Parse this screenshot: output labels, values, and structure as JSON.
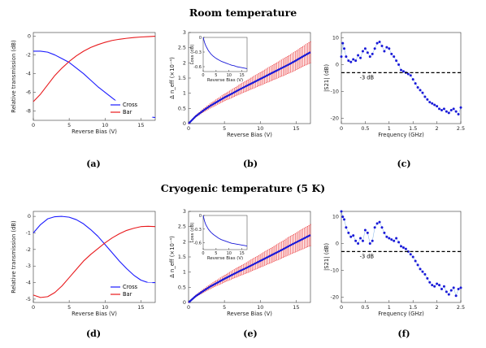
{
  "sections": [
    {
      "title": "Room temperature"
    },
    {
      "title": "Cryogenic temperature (5 K)"
    }
  ],
  "colors": {
    "cross": "#1a1aff",
    "bar": "#e8191c",
    "error": "#e8191c",
    "mean": "#1a1ad8",
    "s21": "#1a1ad8",
    "threshold": "#000000"
  },
  "chart_data": [
    {
      "id": "a",
      "panel_label": "(a)",
      "type": "line",
      "xlabel": "Reverse Bias (V)",
      "ylabel": "Relative transmission (dB)",
      "xlim": [
        0,
        17
      ],
      "ylim": [
        -9,
        0.4
      ],
      "xticks": [
        0,
        5,
        10,
        15
      ],
      "yticks": [
        -8,
        -6,
        -4,
        -2,
        0
      ],
      "ytick_labels": [
        "-8",
        "-6",
        "-4",
        "-2",
        "0"
      ],
      "legend": {
        "position": "bottom-right"
      },
      "series": [
        {
          "name": "Cross",
          "color": "#1a1aff",
          "x": [
            0,
            1,
            2,
            3,
            4,
            5,
            6,
            7,
            8,
            9,
            10,
            11,
            12,
            13,
            14,
            15,
            16,
            17
          ],
          "y": [
            -1.6,
            -1.6,
            -1.7,
            -2.0,
            -2.4,
            -2.8,
            -3.4,
            -4.0,
            -4.7,
            -5.4,
            -6.0,
            -6.6,
            -7.2,
            -7.7,
            -8.1,
            -8.4,
            -8.6,
            -8.7
          ]
        },
        {
          "name": "Bar",
          "color": "#e8191c",
          "x": [
            0,
            1,
            2,
            3,
            4,
            5,
            6,
            7,
            8,
            9,
            10,
            11,
            12,
            13,
            14,
            15,
            16,
            17
          ],
          "y": [
            -7.0,
            -6.2,
            -5.2,
            -4.2,
            -3.4,
            -2.7,
            -2.1,
            -1.6,
            -1.2,
            -0.9,
            -0.65,
            -0.45,
            -0.32,
            -0.22,
            -0.14,
            -0.08,
            -0.04,
            0.0
          ]
        }
      ]
    },
    {
      "id": "b",
      "panel_label": "(b)",
      "type": "line",
      "xlabel": "Reverse Bias (V)",
      "ylabel": "Δ n_eff (×10⁻⁴)",
      "xlim": [
        0,
        17
      ],
      "ylim": [
        0,
        3
      ],
      "xticks": [
        0,
        5,
        10,
        15
      ],
      "yticks": [
        0,
        0.5,
        1,
        1.5,
        2,
        2.5,
        3
      ],
      "ytick_labels": [
        "0",
        "0.5",
        "1",
        "1.5",
        "2",
        "2.5",
        "3"
      ],
      "mean_color": "#1a1ad8",
      "error_color": "#e8191c",
      "x": [
        0,
        1,
        2,
        3,
        4,
        5,
        6,
        7,
        8,
        9,
        10,
        11,
        12,
        13,
        14,
        15,
        16,
        17
      ],
      "y": [
        0.0,
        0.24,
        0.42,
        0.58,
        0.72,
        0.86,
        0.98,
        1.11,
        1.23,
        1.35,
        1.47,
        1.59,
        1.71,
        1.83,
        1.95,
        2.08,
        2.22,
        2.35
      ],
      "err": [
        0.0,
        0.03,
        0.05,
        0.07,
        0.09,
        0.11,
        0.13,
        0.15,
        0.17,
        0.19,
        0.21,
        0.23,
        0.25,
        0.27,
        0.29,
        0.31,
        0.33,
        0.35
      ],
      "inset": {
        "xlabel": "Reverse Bias (V)",
        "ylabel": "Loss (dB)",
        "xlim": [
          0,
          17
        ],
        "ylim": [
          -0.7,
          0.0
        ],
        "xticks": [
          0,
          5,
          10,
          15
        ],
        "yticks": [
          -0.6,
          -0.3,
          0
        ],
        "ytick_labels": [
          "-0.6",
          "-0.3",
          "0"
        ],
        "x": [
          0,
          0.5,
          1,
          2,
          3,
          4,
          5,
          6,
          7,
          8,
          9,
          10,
          11,
          12,
          13,
          14,
          15,
          16,
          17
        ],
        "y": [
          0.0,
          -0.1,
          -0.17,
          -0.27,
          -0.34,
          -0.39,
          -0.43,
          -0.46,
          -0.49,
          -0.51,
          -0.53,
          -0.55,
          -0.57,
          -0.58,
          -0.6,
          -0.61,
          -0.62,
          -0.63,
          -0.64
        ]
      }
    },
    {
      "id": "c",
      "panel_label": "(c)",
      "type": "scatter",
      "xlabel": "Frequency (GHz)",
      "ylabel": "|S21| (dB)",
      "xlim": [
        0,
        2.5
      ],
      "ylim": [
        -22,
        12
      ],
      "xticks": [
        0,
        0.5,
        1,
        1.5,
        2,
        2.5
      ],
      "yticks": [
        -20,
        -10,
        0,
        10
      ],
      "ytick_labels": [
        "-20",
        "-10",
        "0",
        "10"
      ],
      "threshold": {
        "value": -3,
        "label": "-3 dB"
      },
      "x": [
        0.0,
        0.03,
        0.06,
        0.1,
        0.15,
        0.2,
        0.25,
        0.3,
        0.35,
        0.4,
        0.45,
        0.5,
        0.55,
        0.6,
        0.65,
        0.7,
        0.75,
        0.8,
        0.85,
        0.9,
        0.95,
        1.0,
        1.05,
        1.1,
        1.15,
        1.2,
        1.25,
        1.3,
        1.35,
        1.4,
        1.45,
        1.5,
        1.55,
        1.6,
        1.65,
        1.7,
        1.75,
        1.8,
        1.85,
        1.9,
        1.95,
        2.0,
        2.05,
        2.1,
        2.15,
        2.2,
        2.25,
        2.3,
        2.35,
        2.4,
        2.45,
        2.5
      ],
      "y": [
        3.0,
        8.0,
        6.0,
        3.0,
        1.5,
        1.0,
        2.0,
        1.5,
        3.5,
        2.5,
        5.0,
        6.0,
        4.5,
        3.0,
        4.0,
        6.0,
        8.0,
        8.5,
        7.0,
        5.0,
        6.5,
        6.0,
        4.0,
        3.0,
        1.5,
        0.0,
        -2.0,
        -2.5,
        -3.0,
        -3.5,
        -4.0,
        -5.5,
        -7.0,
        -8.5,
        -9.5,
        -10.5,
        -12.0,
        -13.0,
        -14.0,
        -14.5,
        -15.0,
        -15.5,
        -16.5,
        -17.0,
        -16.5,
        -17.5,
        -18.0,
        -17.0,
        -16.5,
        -17.5,
        -18.5,
        -16.0
      ]
    },
    {
      "id": "d",
      "panel_label": "(d)",
      "type": "line",
      "xlabel": "Reverse Bias (V)",
      "ylabel": "Relative transmission (dB)",
      "xlim": [
        0,
        17
      ],
      "ylim": [
        -5.2,
        0.3
      ],
      "xticks": [
        0,
        5,
        10,
        15
      ],
      "yticks": [
        -5,
        -4,
        -3,
        -2,
        -1,
        0
      ],
      "ytick_labels": [
        "-5",
        "-4",
        "-3",
        "-2",
        "-1",
        "0"
      ],
      "legend": {
        "position": "bottom-right"
      },
      "series": [
        {
          "name": "Cross",
          "color": "#1a1aff",
          "x": [
            0,
            1,
            2,
            3,
            4,
            5,
            6,
            7,
            8,
            9,
            10,
            11,
            12,
            13,
            14,
            15,
            16,
            17
          ],
          "y": [
            -1.0,
            -0.5,
            -0.15,
            -0.02,
            0.0,
            -0.05,
            -0.2,
            -0.45,
            -0.8,
            -1.2,
            -1.7,
            -2.2,
            -2.7,
            -3.15,
            -3.55,
            -3.85,
            -4.0,
            -4.0
          ]
        },
        {
          "name": "Bar",
          "color": "#e8191c",
          "x": [
            0,
            1,
            2,
            3,
            4,
            5,
            6,
            7,
            8,
            9,
            10,
            11,
            12,
            13,
            14,
            15,
            16,
            17
          ],
          "y": [
            -4.75,
            -4.9,
            -4.85,
            -4.6,
            -4.2,
            -3.7,
            -3.2,
            -2.7,
            -2.3,
            -1.95,
            -1.6,
            -1.3,
            -1.05,
            -0.85,
            -0.72,
            -0.62,
            -0.6,
            -0.62
          ]
        }
      ]
    },
    {
      "id": "e",
      "panel_label": "(e)",
      "type": "line",
      "xlabel": "Reverse Bias (V)",
      "ylabel": "Δ n_eff (×10⁻⁴)",
      "xlim": [
        0,
        17
      ],
      "ylim": [
        0,
        3
      ],
      "xticks": [
        0,
        5,
        10,
        15
      ],
      "yticks": [
        0,
        0.5,
        1,
        1.5,
        2,
        2.5,
        3
      ],
      "ytick_labels": [
        "0",
        "0.5",
        "1",
        "1.5",
        "2",
        "2.5",
        "3"
      ],
      "mean_color": "#1a1ad8",
      "error_color": "#e8191c",
      "x": [
        0,
        1,
        2,
        3,
        4,
        5,
        6,
        7,
        8,
        9,
        10,
        11,
        12,
        13,
        14,
        15,
        16,
        17
      ],
      "y": [
        0.0,
        0.21,
        0.37,
        0.52,
        0.65,
        0.78,
        0.9,
        1.02,
        1.13,
        1.25,
        1.37,
        1.49,
        1.61,
        1.73,
        1.86,
        1.98,
        2.1,
        2.22
      ],
      "err": [
        0.0,
        0.03,
        0.05,
        0.07,
        0.09,
        0.11,
        0.13,
        0.15,
        0.17,
        0.19,
        0.21,
        0.23,
        0.25,
        0.27,
        0.29,
        0.31,
        0.33,
        0.35
      ],
      "inset": {
        "xlabel": "Reverse Bias (V)",
        "ylabel": "Loss (dB)",
        "xlim": [
          0,
          17
        ],
        "ylim": [
          -0.75,
          0.0
        ],
        "xticks": [
          0,
          5,
          10,
          15
        ],
        "yticks": [
          -0.6,
          -0.3,
          0
        ],
        "ytick_labels": [
          "-0.6",
          "-0.3",
          "0"
        ],
        "x": [
          0,
          0.5,
          1,
          2,
          3,
          4,
          5,
          6,
          7,
          8,
          9,
          10,
          11,
          12,
          13,
          14,
          15,
          16,
          17
        ],
        "y": [
          0.0,
          -0.12,
          -0.2,
          -0.3,
          -0.37,
          -0.42,
          -0.46,
          -0.5,
          -0.53,
          -0.55,
          -0.57,
          -0.59,
          -0.61,
          -0.62,
          -0.63,
          -0.64,
          -0.65,
          -0.66,
          -0.67
        ]
      }
    },
    {
      "id": "f",
      "panel_label": "(f)",
      "type": "scatter",
      "xlabel": "Frequency (GHz)",
      "ylabel": "|S21| (dB)",
      "xlim": [
        0,
        2.5
      ],
      "ylim": [
        -22,
        12
      ],
      "xticks": [
        0,
        0.5,
        1,
        1.5,
        2,
        2.5
      ],
      "yticks": [
        -20,
        -10,
        0,
        10
      ],
      "ytick_labels": [
        "-20",
        "-10",
        "0",
        "10"
      ],
      "threshold": {
        "value": -3,
        "label": "-3 dB"
      },
      "x": [
        0.0,
        0.03,
        0.06,
        0.1,
        0.15,
        0.2,
        0.25,
        0.3,
        0.35,
        0.4,
        0.45,
        0.5,
        0.55,
        0.6,
        0.65,
        0.7,
        0.75,
        0.8,
        0.85,
        0.9,
        0.95,
        1.0,
        1.05,
        1.1,
        1.15,
        1.2,
        1.25,
        1.3,
        1.35,
        1.4,
        1.45,
        1.5,
        1.55,
        1.6,
        1.65,
        1.7,
        1.75,
        1.8,
        1.85,
        1.9,
        1.95,
        2.0,
        2.05,
        2.1,
        2.15,
        2.2,
        2.25,
        2.3,
        2.35,
        2.4,
        2.45,
        2.5
      ],
      "y": [
        12.0,
        10.0,
        9.0,
        6.0,
        4.0,
        2.5,
        3.0,
        1.0,
        0.0,
        2.0,
        1.0,
        5.0,
        4.0,
        0.0,
        1.0,
        6.0,
        7.5,
        8.0,
        6.0,
        4.0,
        2.5,
        2.0,
        1.5,
        1.0,
        2.0,
        0.5,
        -1.0,
        -1.5,
        -2.0,
        -3.0,
        -4.0,
        -5.0,
        -6.5,
        -8.0,
        -9.5,
        -10.5,
        -11.5,
        -13.0,
        -14.5,
        -15.5,
        -16.0,
        -15.0,
        -15.5,
        -17.0,
        -16.0,
        -18.0,
        -19.0,
        -17.5,
        -16.5,
        -19.5,
        -17.0,
        -16.5
      ]
    }
  ]
}
